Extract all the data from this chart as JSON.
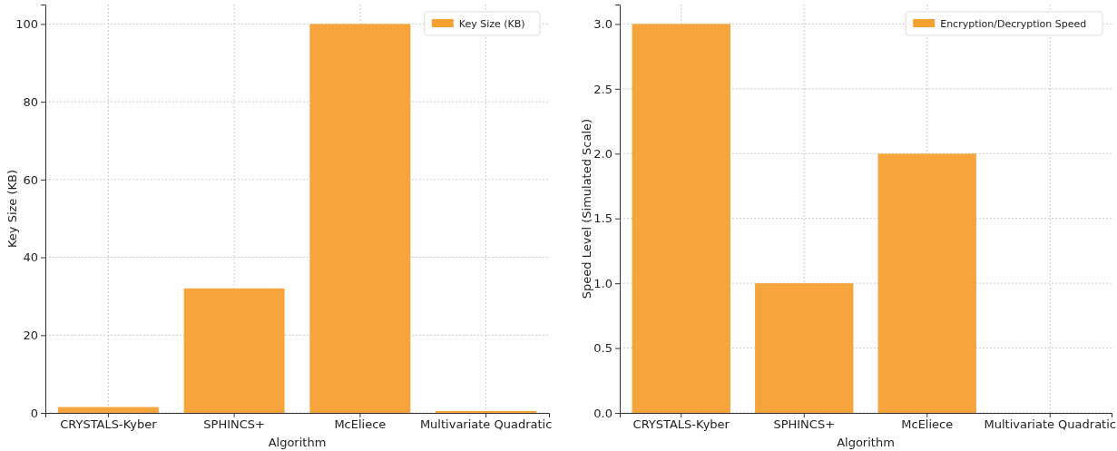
{
  "chart_data": [
    {
      "type": "bar",
      "xlabel": "Algorithm",
      "ylabel": "Key Size (KB)",
      "categories": [
        "CRYSTALS-Kyber",
        "SPHINCS+",
        "McEliece",
        "Multivariate Quadratic"
      ],
      "series": [
        {
          "name": "Key Size (KB)",
          "color": "#f5a033",
          "values": [
            1.5,
            32,
            100,
            0.5
          ]
        }
      ],
      "ylim": [
        0,
        105
      ],
      "yticks": [
        0,
        20,
        40,
        60,
        80,
        100
      ],
      "grid": true,
      "legend": "top right"
    },
    {
      "type": "bar",
      "xlabel": "Algorithm",
      "ylabel": "Speed Level (Simulated Scale)",
      "categories": [
        "CRYSTALS-Kyber",
        "SPHINCS+",
        "McEliece",
        "Multivariate Quadratic"
      ],
      "series": [
        {
          "name": "Encryption/Decryption Speed",
          "color": "#f5a033",
          "values": [
            3,
            1,
            2,
            0
          ]
        }
      ],
      "ylim": [
        0,
        3.15
      ],
      "yticks": [
        {
          "value": 0,
          "label": "0.0"
        },
        {
          "value": 0.5,
          "label": "0.5"
        },
        {
          "value": 1,
          "label": "1.0"
        },
        {
          "value": 1.5,
          "label": "1.5"
        },
        {
          "value": 2,
          "label": "2.0"
        },
        {
          "value": 2.5,
          "label": "2.5"
        },
        {
          "value": 3,
          "label": "3.0"
        }
      ],
      "grid": true,
      "legend": "top right"
    }
  ]
}
